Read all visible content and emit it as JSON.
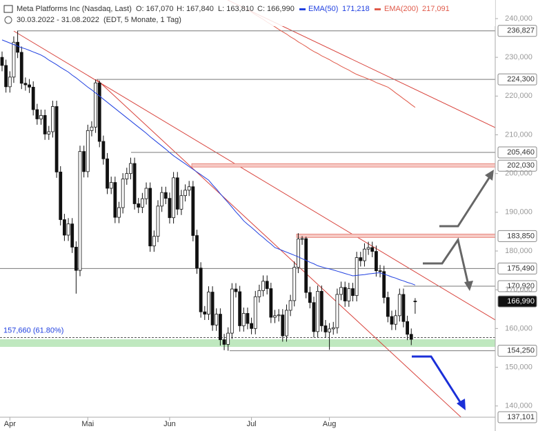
{
  "chart_data": {
    "type": "candlestick",
    "title": "Meta Platforms Inc (Nasdaq, Last)",
    "quote": [
      "O: 167,070",
      "H: 167,840",
      "L: 163,810",
      "C: 166,990"
    ],
    "range": "30.03.2022 - 31.08.2022",
    "info": "(EDT, 5 Monate, 1 Tag)",
    "categories": [
      null,
      null,
      "Apr",
      null,
      null,
      null,
      null,
      null,
      null,
      null,
      null,
      null,
      null,
      null,
      null,
      null,
      null,
      null,
      null,
      null,
      null,
      null,
      "Mai",
      null,
      null,
      null,
      null,
      null,
      null,
      null,
      null,
      null,
      null,
      null,
      null,
      null,
      null,
      null,
      null,
      null,
      null,
      null,
      null,
      "Jun",
      null,
      null,
      null,
      null,
      null,
      null,
      null,
      null,
      null,
      null,
      null,
      null,
      null,
      null,
      null,
      null,
      null,
      null,
      null,
      null,
      "Jul",
      null,
      null,
      null,
      null,
      null,
      null,
      null,
      null,
      null,
      null,
      null,
      null,
      null,
      null,
      null,
      null,
      null,
      null,
      null,
      "Aug",
      null,
      null,
      null,
      null,
      null,
      null,
      null,
      null,
      null,
      null,
      null,
      null,
      null,
      null,
      null,
      null,
      null,
      null,
      null,
      null,
      null,
      null
    ],
    "open": [
      230.0,
      227.9,
      222.4,
      224.9,
      233.9,
      231.3,
      223.3,
      222.9,
      222.3,
      216.5,
      214.1,
      215.0,
      210.2,
      210.8,
      217.3,
      200.4,
      188.1,
      184.1,
      187.0,
      181.0,
      175.0,
      205.7,
      200.5,
      211.1,
      212.0,
      223.4,
      208.3,
      203.8,
      196.2,
      197.7,
      188.7,
      191.2,
      198.6,
      200.0,
      202.6,
      192.2,
      191.3,
      193.5,
      196.2,
      181.3,
      183.8,
      191.6,
      195.1,
      193.6,
      188.6,
      198.9,
      190.8,
      194.3,
      195.7,
      196.6,
      184.0,
      175.6,
      164.3,
      163.7,
      169.4,
      160.9,
      163.7,
      157.1,
      155.9,
      158.8,
      170.2,
      169.5,
      160.7,
      163.9,
      161.3,
      160.0,
      168.2,
      169.8,
      172.2,
      170.3,
      162.9,
      163.3,
      163.5,
      158.1,
      164.7,
      167.2,
      175.8,
      183.1,
      183.2,
      169.3,
      166.7,
      159.2,
      169.6,
      160.7,
      159.1,
      159.9,
      160.2,
      168.8,
      170.6,
      167.1,
      170.3,
      168.5,
      178.3,
      177.5,
      180.5,
      180.9,
      179.9,
      174.9,
      174.7,
      168.0,
      163.1,
      161.1,
      163.3,
      168.8,
      161.8,
      158.5,
      167.07
    ],
    "high": [
      231.5,
      229.4,
      226.4,
      235.4,
      236.827,
      232.8,
      224.8,
      224.4,
      223.8,
      218.0,
      216.5,
      216.5,
      212.3,
      218.8,
      218.8,
      201.9,
      189.6,
      188.5,
      188.5,
      182.5,
      207.2,
      207.2,
      212.6,
      213.5,
      224.3,
      224.0,
      209.8,
      205.3,
      199.2,
      199.2,
      192.7,
      200.1,
      201.5,
      204.1,
      204.1,
      193.7,
      195.0,
      197.7,
      197.7,
      185.3,
      193.1,
      196.6,
      196.6,
      195.1,
      200.4,
      200.4,
      195.8,
      197.2,
      198.1,
      198.1,
      185.5,
      177.1,
      165.8,
      170.9,
      170.9,
      165.2,
      165.2,
      158.6,
      160.3,
      171.7,
      171.7,
      171.0,
      165.4,
      165.4,
      162.8,
      169.7,
      171.3,
      173.7,
      173.7,
      171.8,
      164.8,
      165.0,
      165.0,
      166.2,
      168.7,
      177.3,
      184.6,
      183.85,
      183.7,
      170.8,
      168.2,
      171.1,
      171.1,
      162.2,
      161.4,
      161.7,
      170.3,
      172.1,
      172.1,
      171.8,
      171.8,
      179.8,
      179.8,
      182.0,
      182.4,
      182.4,
      181.4,
      176.4,
      176.2,
      169.5,
      164.6,
      164.8,
      170.3,
      170.3,
      163.3,
      160.0,
      167.84
    ],
    "low": [
      226.4,
      220.9,
      220.9,
      223.4,
      229.8,
      221.8,
      221.4,
      220.8,
      215.0,
      212.6,
      212.6,
      208.7,
      208.7,
      209.3,
      198.9,
      186.6,
      182.6,
      182.6,
      179.5,
      169.0,
      173.5,
      199.0,
      199.0,
      209.6,
      210.5,
      206.8,
      202.3,
      194.7,
      194.7,
      187.2,
      187.2,
      189.7,
      197.1,
      198.5,
      190.7,
      189.8,
      189.8,
      192.0,
      179.8,
      179.8,
      182.3,
      190.1,
      192.1,
      187.1,
      187.1,
      189.3,
      189.3,
      192.8,
      194.2,
      182.5,
      174.1,
      162.8,
      162.2,
      162.2,
      159.4,
      159.4,
      155.6,
      154.4,
      154.25,
      157.3,
      168.0,
      159.2,
      159.2,
      159.8,
      158.5,
      158.5,
      166.7,
      168.3,
      168.8,
      161.4,
      161.4,
      161.8,
      156.6,
      156.6,
      163.2,
      165.7,
      174.3,
      181.6,
      167.8,
      165.2,
      157.7,
      157.7,
      159.2,
      157.6,
      154.5,
      158.4,
      158.7,
      167.3,
      165.6,
      165.6,
      167.0,
      167.0,
      176.0,
      176.0,
      179.0,
      178.4,
      173.4,
      173.2,
      166.5,
      161.6,
      159.6,
      159.6,
      161.8,
      160.3,
      157.0,
      155.7,
      163.81
    ],
    "close": [
      227.9,
      222.4,
      224.9,
      233.9,
      231.3,
      223.3,
      222.9,
      222.3,
      216.5,
      214.1,
      215.0,
      210.2,
      210.8,
      217.3,
      200.4,
      188.1,
      184.1,
      187.0,
      181.0,
      175.0,
      205.7,
      200.5,
      211.1,
      212.0,
      223.4,
      208.3,
      203.8,
      196.2,
      197.7,
      188.7,
      191.2,
      198.6,
      200.0,
      202.6,
      192.2,
      191.3,
      193.5,
      196.2,
      181.3,
      183.8,
      191.6,
      195.1,
      193.6,
      188.6,
      198.9,
      190.8,
      194.3,
      195.7,
      196.6,
      184.0,
      175.6,
      164.3,
      163.7,
      169.4,
      160.9,
      163.7,
      157.1,
      155.9,
      158.8,
      170.2,
      169.5,
      160.7,
      163.9,
      161.3,
      160.0,
      168.2,
      169.8,
      172.2,
      170.3,
      162.9,
      163.3,
      163.5,
      158.1,
      164.7,
      167.2,
      175.8,
      183.1,
      183.2,
      169.3,
      166.7,
      159.2,
      169.6,
      160.7,
      159.1,
      159.9,
      160.2,
      168.8,
      170.6,
      167.1,
      170.3,
      168.5,
      178.3,
      177.5,
      180.5,
      180.9,
      179.9,
      174.9,
      174.7,
      168.0,
      163.1,
      161.1,
      163.3,
      168.8,
      161.8,
      158.5,
      157.2,
      166.99
    ],
    "series": [
      {
        "name": "EMA(50)",
        "color": "#2040e0",
        "value_label": "171,218",
        "values": [
          234.5,
          234.1,
          233.7,
          233.3,
          232.9,
          232.5,
          232.2,
          231.8,
          231.4,
          231.0,
          230.6,
          230.0,
          229.3,
          228.7,
          228.1,
          227.4,
          226.8,
          226.2,
          225.4,
          224.7,
          223.9,
          223.1,
          222.3,
          221.6,
          220.8,
          220.0,
          219.2,
          218.4,
          217.6,
          216.8,
          216.0,
          215.2,
          214.4,
          213.6,
          212.8,
          212.0,
          211.2,
          210.4,
          209.5,
          208.7,
          207.9,
          207.1,
          206.3,
          205.4,
          204.6,
          203.9,
          203.2,
          202.5,
          201.8,
          201.1,
          200.4,
          199.7,
          199.0,
          198.3,
          197.1,
          196.0,
          194.8,
          193.6,
          192.5,
          191.3,
          190.1,
          189.0,
          187.8,
          186.9,
          186.1,
          185.2,
          184.3,
          183.5,
          182.6,
          181.8,
          180.9,
          180.5,
          180.1,
          179.7,
          179.3,
          178.9,
          178.5,
          178.0,
          177.6,
          177.1,
          176.7,
          176.2,
          175.9,
          175.6,
          175.4,
          175.1,
          174.8,
          174.5,
          174.2,
          173.9,
          173.6,
          173.7,
          173.8,
          173.9,
          174.1,
          174.2,
          174.3,
          174.4,
          174.0,
          173.7,
          173.3,
          173.0,
          172.6,
          172.3,
          171.9,
          171.6,
          171.218
        ]
      },
      {
        "name": "EMA(200)",
        "color": "#e05a4a",
        "value_label": "217,091",
        "values": [
          null,
          null,
          null,
          null,
          null,
          null,
          null,
          null,
          null,
          null,
          null,
          null,
          null,
          null,
          null,
          null,
          null,
          null,
          null,
          null,
          null,
          null,
          null,
          null,
          null,
          null,
          null,
          null,
          null,
          null,
          null,
          null,
          null,
          null,
          null,
          null,
          null,
          null,
          null,
          null,
          null,
          null,
          null,
          null,
          null,
          null,
          null,
          null,
          null,
          null,
          null,
          null,
          null,
          null,
          null,
          null,
          null,
          null,
          null,
          null,
          null,
          null,
          null,
          242.3,
          241.7,
          241.0,
          240.4,
          239.8,
          239.1,
          238.5,
          237.9,
          237.2,
          236.6,
          236.0,
          235.3,
          234.7,
          234.0,
          233.4,
          232.8,
          232.1,
          231.5,
          231.0,
          230.4,
          229.9,
          229.4,
          228.8,
          228.3,
          227.7,
          227.2,
          226.7,
          226.1,
          225.6,
          225.2,
          224.8,
          224.4,
          224.0,
          223.5,
          223.1,
          222.7,
          222.3,
          221.6,
          220.8,
          220.1,
          219.3,
          218.6,
          217.8,
          217.091
        ]
      }
    ],
    "ylim": [
      137.1,
      244.8
    ],
    "yticks": [
      {
        "value": 140,
        "label": "140,000"
      },
      {
        "value": 150,
        "label": "150,000"
      },
      {
        "value": 160,
        "label": "160,000"
      },
      {
        "value": 170,
        "label": "170,000"
      },
      {
        "value": 180,
        "label": "180,000"
      },
      {
        "value": 190,
        "label": "190,000"
      },
      {
        "value": 200,
        "label": "200,000"
      },
      {
        "value": 210,
        "label": "210,000"
      },
      {
        "value": 220,
        "label": "220,000"
      },
      {
        "value": 230,
        "label": "230,000"
      },
      {
        "value": 240,
        "label": "240,000"
      }
    ],
    "levels": [
      {
        "value": 236.827,
        "label": "236,827"
      },
      {
        "value": 224.3,
        "label": "224,300"
      },
      {
        "value": 205.46,
        "label": "205,460"
      },
      {
        "value": 202.03,
        "label": "202,030"
      },
      {
        "value": 183.85,
        "label": "183,850"
      },
      {
        "value": 175.49,
        "label": "175,490"
      },
      {
        "value": 170.92,
        "label": "170,920"
      },
      {
        "value": 166.99,
        "label": "166,990"
      },
      {
        "value": 154.25,
        "label": "154,250"
      },
      {
        "value": 137.101,
        "label": "137,101"
      }
    ],
    "fib": {
      "value": 157.66,
      "label": "157,660 (61.80%)"
    },
    "grid": false
  }
}
